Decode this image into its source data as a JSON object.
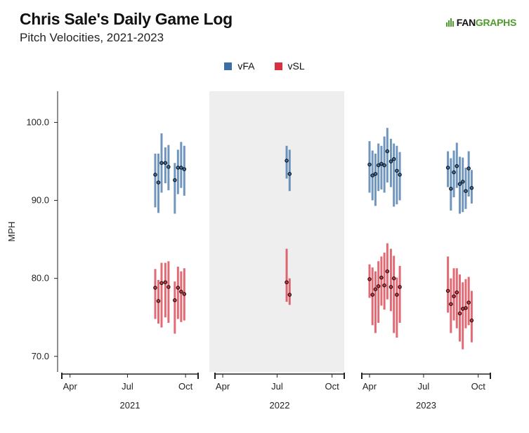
{
  "title": "Chris Sale's Daily Game Log",
  "subtitle": "Pitch Velocities, 2021-2023",
  "logo": {
    "text_dark": "FAN",
    "text_green": "GRAPHS",
    "color": "#4f9b2b"
  },
  "legend": [
    {
      "name": "vFA",
      "color": "#3a6ea5"
    },
    {
      "name": "vSL",
      "color": "#d7303f"
    }
  ],
  "chart_data": {
    "type": "range-dot",
    "ylabel": "MPH",
    "ylim": [
      68,
      104
    ],
    "yticks": [
      70,
      80,
      90,
      100
    ],
    "ytick_labels": [
      "70.0",
      "80.0",
      "90.0",
      "100.0"
    ],
    "highlighted_panel": "2022",
    "panel_background": "#eeeeee",
    "panels": [
      {
        "year": "2021",
        "month_ticks": [
          "Apr",
          "Jul",
          "Oct"
        ],
        "series": [
          {
            "name": "vFA",
            "color": "#3a6ea5",
            "points": [
              {
                "date": "2021-08-14",
                "mean": 93.3,
                "low": 89.1,
                "high": 96.0
              },
              {
                "date": "2021-08-19",
                "mean": 92.3,
                "low": 88.4,
                "high": 96.0
              },
              {
                "date": "2021-08-24",
                "mean": 94.8,
                "low": 91.0,
                "high": 98.6
              },
              {
                "date": "2021-08-30",
                "mean": 94.8,
                "low": 92.2,
                "high": 96.8
              },
              {
                "date": "2021-09-04",
                "mean": 94.3,
                "low": 91.3,
                "high": 97.1
              },
              {
                "date": "2021-09-14",
                "mean": 92.6,
                "low": 88.3,
                "high": 94.8
              },
              {
                "date": "2021-09-19",
                "mean": 94.2,
                "low": 90.8,
                "high": 96.5
              },
              {
                "date": "2021-09-24",
                "mean": 94.2,
                "low": 91.6,
                "high": 97.5
              },
              {
                "date": "2021-09-29",
                "mean": 94.0,
                "low": 90.6,
                "high": 97.0
              }
            ]
          },
          {
            "name": "vSL",
            "color": "#d7303f",
            "points": [
              {
                "date": "2021-08-14",
                "mean": 78.8,
                "low": 74.8,
                "high": 81.2
              },
              {
                "date": "2021-08-19",
                "mean": 77.1,
                "low": 74.2,
                "high": 79.8
              },
              {
                "date": "2021-08-24",
                "mean": 79.4,
                "low": 73.7,
                "high": 82.0
              },
              {
                "date": "2021-08-30",
                "mean": 79.5,
                "low": 75.0,
                "high": 82.0
              },
              {
                "date": "2021-09-04",
                "mean": 78.9,
                "low": 74.3,
                "high": 82.2
              },
              {
                "date": "2021-09-14",
                "mean": 77.2,
                "low": 72.9,
                "high": 79.6
              },
              {
                "date": "2021-09-19",
                "mean": 78.8,
                "low": 74.8,
                "high": 81.5
              },
              {
                "date": "2021-09-24",
                "mean": 78.3,
                "low": 74.4,
                "high": 80.9
              },
              {
                "date": "2021-09-29",
                "mean": 78.0,
                "low": 74.6,
                "high": 81.3
              }
            ]
          }
        ]
      },
      {
        "year": "2022",
        "month_ticks": [
          "Apr",
          "Jul",
          "Oct"
        ],
        "series": [
          {
            "name": "vFA",
            "color": "#3a6ea5",
            "points": [
              {
                "date": "2022-07-17",
                "mean": 95.1,
                "low": 92.8,
                "high": 97.0
              },
              {
                "date": "2022-07-22",
                "mean": 93.4,
                "low": 91.2,
                "high": 96.5
              }
            ]
          },
          {
            "name": "vSL",
            "color": "#d7303f",
            "points": [
              {
                "date": "2022-07-17",
                "mean": 79.5,
                "low": 77.0,
                "high": 83.8
              },
              {
                "date": "2022-07-22",
                "mean": 77.9,
                "low": 76.6,
                "high": 80.0
              }
            ]
          }
        ]
      },
      {
        "year": "2023",
        "month_ticks": [
          "Apr",
          "Jul",
          "Oct"
        ],
        "series": [
          {
            "name": "vFA",
            "color": "#3a6ea5",
            "points": [
              {
                "date": "2023-04-01",
                "mean": 94.6,
                "low": 91.0,
                "high": 97.6
              },
              {
                "date": "2023-04-06",
                "mean": 93.2,
                "low": 90.0,
                "high": 96.4
              },
              {
                "date": "2023-04-11",
                "mean": 93.4,
                "low": 89.3,
                "high": 96.0
              },
              {
                "date": "2023-04-16",
                "mean": 94.5,
                "low": 91.2,
                "high": 97.3
              },
              {
                "date": "2023-04-21",
                "mean": 94.7,
                "low": 91.4,
                "high": 97.0
              },
              {
                "date": "2023-04-26",
                "mean": 94.5,
                "low": 91.0,
                "high": 98.2
              },
              {
                "date": "2023-05-01",
                "mean": 96.3,
                "low": 92.3,
                "high": 99.3
              },
              {
                "date": "2023-05-07",
                "mean": 95.0,
                "low": 91.7,
                "high": 97.9
              },
              {
                "date": "2023-05-12",
                "mean": 95.3,
                "low": 89.2,
                "high": 97.3
              },
              {
                "date": "2023-05-17",
                "mean": 93.8,
                "low": 89.5,
                "high": 97.0
              },
              {
                "date": "2023-05-22",
                "mean": 93.3,
                "low": 90.0,
                "high": 96.2
              },
              {
                "date": "2023-08-11",
                "mean": 94.2,
                "low": 91.7,
                "high": 96.3
              },
              {
                "date": "2023-08-16",
                "mean": 91.5,
                "low": 88.7,
                "high": 95.4
              },
              {
                "date": "2023-08-21",
                "mean": 93.6,
                "low": 90.4,
                "high": 96.4
              },
              {
                "date": "2023-08-26",
                "mean": 94.4,
                "low": 91.6,
                "high": 97.4
              },
              {
                "date": "2023-08-31",
                "mean": 92.1,
                "low": 88.3,
                "high": 95.6
              },
              {
                "date": "2023-09-05",
                "mean": 92.4,
                "low": 88.5,
                "high": 95.5
              },
              {
                "date": "2023-09-10",
                "mean": 91.2,
                "low": 88.9,
                "high": 94.2
              },
              {
                "date": "2023-09-15",
                "mean": 94.1,
                "low": 90.5,
                "high": 96.3
              },
              {
                "date": "2023-09-20",
                "mean": 91.6,
                "low": 89.6,
                "high": 93.9
              }
            ]
          },
          {
            "name": "vSL",
            "color": "#d7303f",
            "points": [
              {
                "date": "2023-04-01",
                "mean": 79.9,
                "low": 77.5,
                "high": 81.8
              },
              {
                "date": "2023-04-06",
                "mean": 77.9,
                "low": 74.0,
                "high": 81.4
              },
              {
                "date": "2023-04-11",
                "mean": 78.6,
                "low": 73.0,
                "high": 80.9
              },
              {
                "date": "2023-04-16",
                "mean": 79.0,
                "low": 74.3,
                "high": 82.2
              },
              {
                "date": "2023-04-21",
                "mean": 80.1,
                "low": 76.5,
                "high": 82.8
              },
              {
                "date": "2023-04-26",
                "mean": 79.1,
                "low": 76.0,
                "high": 83.3
              },
              {
                "date": "2023-05-01",
                "mean": 80.9,
                "low": 77.3,
                "high": 84.5
              },
              {
                "date": "2023-05-07",
                "mean": 78.9,
                "low": 75.8,
                "high": 83.8
              },
              {
                "date": "2023-05-12",
                "mean": 80.0,
                "low": 73.0,
                "high": 82.9
              },
              {
                "date": "2023-05-17",
                "mean": 77.9,
                "low": 72.4,
                "high": 80.1
              },
              {
                "date": "2023-05-22",
                "mean": 78.9,
                "low": 74.3,
                "high": 81.6
              },
              {
                "date": "2023-08-11",
                "mean": 78.4,
                "low": 75.6,
                "high": 82.8
              },
              {
                "date": "2023-08-16",
                "mean": 76.7,
                "low": 73.0,
                "high": 80.0
              },
              {
                "date": "2023-08-21",
                "mean": 77.7,
                "low": 74.6,
                "high": 81.3
              },
              {
                "date": "2023-08-26",
                "mean": 78.2,
                "low": 73.6,
                "high": 81.3
              },
              {
                "date": "2023-08-31",
                "mean": 75.5,
                "low": 71.9,
                "high": 80.5
              },
              {
                "date": "2023-09-05",
                "mean": 76.1,
                "low": 70.9,
                "high": 79.5
              },
              {
                "date": "2023-09-10",
                "mean": 76.2,
                "low": 73.6,
                "high": 79.9
              },
              {
                "date": "2023-09-15",
                "mean": 76.9,
                "low": 74.0,
                "high": 80.2
              },
              {
                "date": "2023-09-20",
                "mean": 74.6,
                "low": 71.8,
                "high": 78.4
              }
            ]
          }
        ]
      }
    ]
  }
}
